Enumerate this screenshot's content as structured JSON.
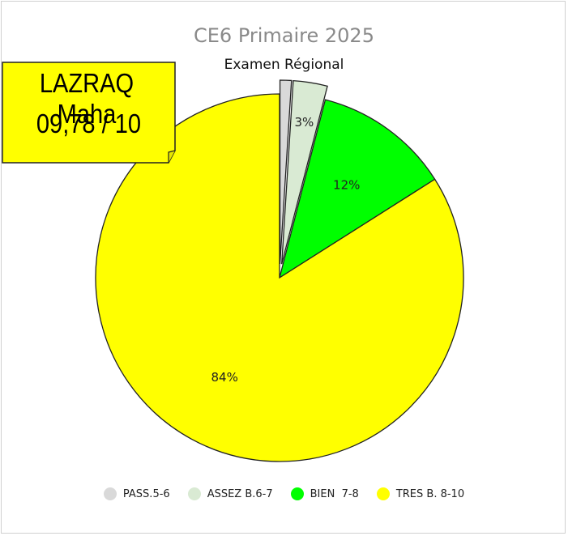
{
  "chart_data": {
    "type": "pie",
    "title": "CE6 Primaire 2025",
    "subtitle": "Examen Régional",
    "slices": [
      {
        "name": "PASS.5-6",
        "value": 1,
        "label": "",
        "color": "#d9d9d9",
        "exploded": true
      },
      {
        "name": "ASSEZ B.6-7",
        "value": 3,
        "label": "3%",
        "color": "#d9ead3",
        "exploded": true
      },
      {
        "name": "BIEN  7-8",
        "value": 12,
        "label": "12%",
        "color": "#00ff00",
        "exploded": false
      },
      {
        "name": "TRES B. 8-10",
        "value": 84,
        "label": "84%",
        "color": "#ffff00",
        "exploded": false
      }
    ],
    "legend_position": "bottom",
    "start_angle": "top, clockwise"
  },
  "callout": {
    "name": "LAZRAQ Maha",
    "score": "09,78 / 10",
    "color": "#ffff00"
  }
}
